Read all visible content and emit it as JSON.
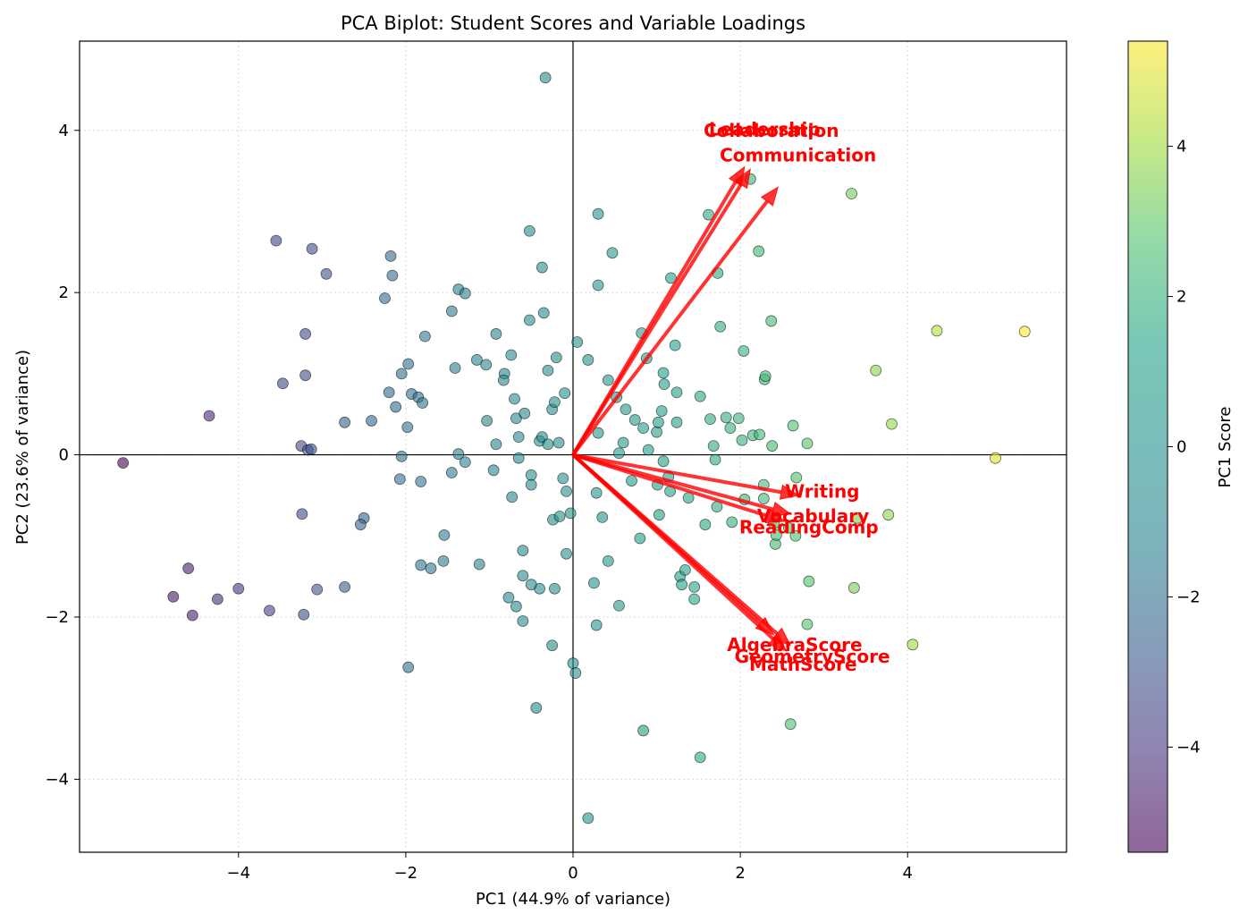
{
  "chart_data": {
    "type": "scatter",
    "title": "PCA Biplot: Student Scores and Variable Loadings",
    "xlabel": "PC1 (44.9% of variance)",
    "ylabel": "PC2 (23.6% of variance)",
    "xlim": [
      -5.9,
      5.9
    ],
    "ylim": [
      -4.9,
      5.1
    ],
    "xticks": [
      -4,
      -2,
      0,
      2,
      4
    ],
    "yticks": [
      -4,
      -2,
      0,
      2,
      4
    ],
    "grid": true,
    "colorbar": {
      "label": "PC1 Score",
      "colormap": "viridis",
      "range": [
        -5.4,
        5.4
      ],
      "ticks": [
        -4,
        -2,
        0,
        2,
        4
      ]
    },
    "marker_alpha": 0.6,
    "points": [
      [
        -5.38,
        -0.1
      ],
      [
        -4.78,
        -1.75
      ],
      [
        -4.6,
        -1.4
      ],
      [
        -4.55,
        -1.98
      ],
      [
        -4.25,
        -1.78
      ],
      [
        -4.0,
        -1.65
      ],
      [
        -4.35,
        0.48
      ],
      [
        -3.63,
        -1.92
      ],
      [
        -3.22,
        -1.97
      ],
      [
        -3.06,
        -1.66
      ],
      [
        -3.55,
        2.64
      ],
      [
        -3.12,
        2.54
      ],
      [
        -2.95,
        2.23
      ],
      [
        -3.47,
        0.88
      ],
      [
        -3.2,
        1.49
      ],
      [
        -3.2,
        0.98
      ],
      [
        -3.25,
        0.11
      ],
      [
        -3.17,
        0.06
      ],
      [
        -3.13,
        0.07
      ],
      [
        -3.24,
        -0.73
      ],
      [
        -2.73,
        0.4
      ],
      [
        -2.73,
        -1.63
      ],
      [
        -2.5,
        -0.78
      ],
      [
        -2.54,
        -0.86
      ],
      [
        -2.41,
        0.42
      ],
      [
        -2.25,
        1.93
      ],
      [
        -2.18,
        2.45
      ],
      [
        -2.16,
        2.21
      ],
      [
        -2.2,
        0.77
      ],
      [
        -2.12,
        0.59
      ],
      [
        -2.05,
        -0.02
      ],
      [
        -2.07,
        -0.3
      ],
      [
        -2.05,
        1.0
      ],
      [
        -1.97,
        1.12
      ],
      [
        -1.98,
        0.34
      ],
      [
        -1.93,
        0.75
      ],
      [
        -1.85,
        0.71
      ],
      [
        -1.8,
        0.64
      ],
      [
        -1.82,
        -0.33
      ],
      [
        -1.82,
        -1.36
      ],
      [
        -1.77,
        1.46
      ],
      [
        -1.7,
        -1.4
      ],
      [
        -1.97,
        -2.62
      ],
      [
        -1.54,
        -0.99
      ],
      [
        -1.55,
        -1.31
      ],
      [
        -1.45,
        1.77
      ],
      [
        -1.45,
        -0.22
      ],
      [
        -1.41,
        1.07
      ],
      [
        -1.37,
        2.04
      ],
      [
        -1.29,
        1.99
      ],
      [
        -1.37,
        0.01
      ],
      [
        -1.29,
        -0.09
      ],
      [
        -1.15,
        1.17
      ],
      [
        -1.12,
        -1.35
      ],
      [
        -1.04,
        1.11
      ],
      [
        -1.03,
        0.42
      ],
      [
        -0.95,
        -0.19
      ],
      [
        -0.92,
        1.49
      ],
      [
        -0.92,
        0.13
      ],
      [
        -0.82,
        1.0
      ],
      [
        -0.83,
        0.92
      ],
      [
        -0.74,
        1.23
      ],
      [
        -0.77,
        -1.76
      ],
      [
        -0.73,
        -0.52
      ],
      [
        -0.7,
        0.69
      ],
      [
        -0.68,
        0.45
      ],
      [
        -0.65,
        0.22
      ],
      [
        -0.65,
        -0.04
      ],
      [
        -0.68,
        -1.87
      ],
      [
        -0.6,
        -1.18
      ],
      [
        -0.6,
        -1.49
      ],
      [
        -0.6,
        -2.05
      ],
      [
        -0.58,
        0.51
      ],
      [
        -0.52,
        2.76
      ],
      [
        -0.52,
        1.66
      ],
      [
        -0.5,
        -0.25
      ],
      [
        -0.5,
        -0.37
      ],
      [
        -0.44,
        -3.12
      ],
      [
        -0.4,
        0.17
      ],
      [
        -0.37,
        2.31
      ],
      [
        -0.35,
        1.75
      ],
      [
        -0.4,
        -1.65
      ],
      [
        -0.5,
        -1.6
      ],
      [
        -0.37,
        0.22
      ],
      [
        -0.3,
        1.04
      ],
      [
        -0.33,
        4.65
      ],
      [
        -0.3,
        0.13
      ],
      [
        -0.25,
        0.56
      ],
      [
        -0.24,
        -0.8
      ],
      [
        -0.22,
        0.65
      ],
      [
        -0.22,
        -1.65
      ],
      [
        -0.2,
        1.2
      ],
      [
        -0.25,
        -2.35
      ],
      [
        -0.17,
        0.15
      ],
      [
        -0.16,
        -0.76
      ],
      [
        -0.12,
        -0.29
      ],
      [
        -0.1,
        0.76
      ],
      [
        -0.08,
        -0.45
      ],
      [
        -0.08,
        -1.22
      ],
      [
        -0.03,
        -0.72
      ],
      [
        0.0,
        -2.57
      ],
      [
        0.03,
        -2.69
      ],
      [
        0.05,
        1.39
      ],
      [
        0.18,
        1.17
      ],
      [
        0.18,
        -4.48
      ],
      [
        0.25,
        -1.58
      ],
      [
        0.28,
        -0.47
      ],
      [
        0.3,
        0.27
      ],
      [
        0.28,
        -2.1
      ],
      [
        0.3,
        2.97
      ],
      [
        0.3,
        2.09
      ],
      [
        0.35,
        -0.77
      ],
      [
        0.42,
        0.92
      ],
      [
        0.42,
        -1.31
      ],
      [
        0.47,
        2.49
      ],
      [
        0.52,
        0.71
      ],
      [
        0.55,
        0.02
      ],
      [
        0.55,
        -1.86
      ],
      [
        0.6,
        0.15
      ],
      [
        0.63,
        0.56
      ],
      [
        0.7,
        -0.32
      ],
      [
        0.74,
        0.43
      ],
      [
        0.8,
        -1.03
      ],
      [
        0.82,
        1.5
      ],
      [
        0.84,
        -3.4
      ],
      [
        0.84,
        0.33
      ],
      [
        0.88,
        1.19
      ],
      [
        0.9,
        0.06
      ],
      [
        1.0,
        0.28
      ],
      [
        1.01,
        -0.37
      ],
      [
        1.02,
        0.4
      ],
      [
        1.03,
        -0.74
      ],
      [
        1.06,
        0.54
      ],
      [
        1.08,
        -0.08
      ],
      [
        1.08,
        1.01
      ],
      [
        1.09,
        0.87
      ],
      [
        1.14,
        -0.27
      ],
      [
        1.16,
        -0.45
      ],
      [
        1.17,
        2.18
      ],
      [
        1.22,
        1.35
      ],
      [
        1.24,
        0.77
      ],
      [
        1.24,
        0.4
      ],
      [
        1.28,
        -1.5
      ],
      [
        1.3,
        -1.6
      ],
      [
        1.34,
        -1.42
      ],
      [
        1.38,
        -0.53
      ],
      [
        1.45,
        -1.63
      ],
      [
        1.45,
        -1.78
      ],
      [
        1.52,
        -3.73
      ],
      [
        1.52,
        0.72
      ],
      [
        1.58,
        -0.86
      ],
      [
        1.62,
        2.96
      ],
      [
        1.64,
        0.44
      ],
      [
        1.68,
        0.11
      ],
      [
        1.7,
        -0.06
      ],
      [
        1.72,
        -0.64
      ],
      [
        1.73,
        2.24
      ],
      [
        1.76,
        1.58
      ],
      [
        1.83,
        0.46
      ],
      [
        1.88,
        0.33
      ],
      [
        1.9,
        -0.83
      ],
      [
        1.98,
        0.45
      ],
      [
        2.02,
        0.18
      ],
      [
        2.04,
        1.28
      ],
      [
        2.05,
        -0.55
      ],
      [
        2.12,
        3.4
      ],
      [
        2.15,
        0.24
      ],
      [
        2.22,
        2.51
      ],
      [
        2.23,
        0.25
      ],
      [
        2.28,
        -0.54
      ],
      [
        2.28,
        -0.37
      ],
      [
        2.29,
        0.93
      ],
      [
        2.3,
        0.97
      ],
      [
        2.37,
        1.65
      ],
      [
        2.38,
        0.11
      ],
      [
        2.4,
        -0.85
      ],
      [
        2.42,
        -1.1
      ],
      [
        2.43,
        -0.99
      ],
      [
        2.58,
        -0.9
      ],
      [
        2.6,
        -3.32
      ],
      [
        2.63,
        0.36
      ],
      [
        2.66,
        -1.0
      ],
      [
        2.8,
        0.14
      ],
      [
        2.8,
        -2.09
      ],
      [
        2.82,
        -1.56
      ],
      [
        3.33,
        3.22
      ],
      [
        3.36,
        -1.64
      ],
      [
        3.4,
        -0.78
      ],
      [
        3.62,
        1.04
      ],
      [
        3.77,
        -0.74
      ],
      [
        3.81,
        0.38
      ],
      [
        4.06,
        -2.34
      ],
      [
        4.35,
        1.53
      ],
      [
        5.05,
        -0.04
      ],
      [
        5.4,
        1.52
      ],
      [
        2.67,
        -0.28
      ]
    ],
    "loadings": [
      {
        "name": "Leadership",
        "end": [
          2.05,
          3.55
        ],
        "label_pos": [
          2.29,
          4.0
        ]
      },
      {
        "name": "Collaboration",
        "end": [
          2.12,
          3.52
        ],
        "label_pos": [
          2.37,
          3.98
        ]
      },
      {
        "name": "Communication",
        "end": [
          2.45,
          3.3
        ],
        "label_pos": [
          2.69,
          3.68
        ]
      },
      {
        "name": "Writing",
        "end": [
          2.7,
          -0.5
        ],
        "label_pos": [
          2.98,
          -0.47
        ]
      },
      {
        "name": "Vocabulary",
        "end": [
          2.6,
          -0.73
        ],
        "label_pos": [
          2.87,
          -0.77
        ]
      },
      {
        "name": "ReadingComp",
        "end": [
          2.53,
          -0.82
        ],
        "label_pos": [
          2.82,
          -0.91
        ]
      },
      {
        "name": "AlgebraScore",
        "end": [
          2.4,
          -2.22
        ],
        "label_pos": [
          2.65,
          -2.36
        ]
      },
      {
        "name": "GeometryScore",
        "end": [
          2.6,
          -2.35
        ],
        "label_pos": [
          2.86,
          -2.5
        ]
      },
      {
        "name": "MathScore",
        "end": [
          2.55,
          -2.42
        ],
        "label_pos": [
          2.75,
          -2.6
        ]
      }
    ]
  }
}
